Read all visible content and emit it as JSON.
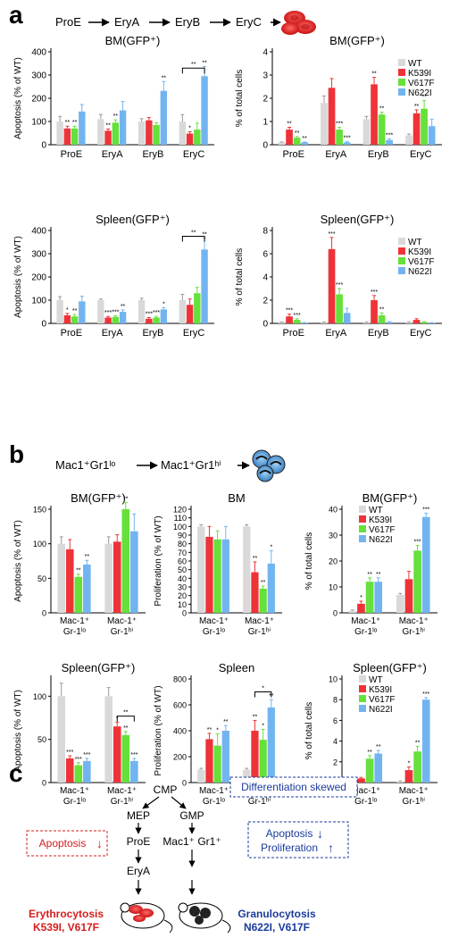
{
  "colors": {
    "WT": "#d9d9d9",
    "K539I": "#ee3338",
    "V617F": "#66e03a",
    "N622I": "#72b4f0",
    "red_text": "#d61d1d",
    "blue_text": "#1b3b9c",
    "cell_red": "#e01b1b"
  },
  "panel_a": {
    "letter": "a",
    "pathway": [
      "ProE",
      "EryA",
      "EryB",
      "EryC"
    ]
  },
  "panel_b": {
    "letter": "b",
    "pathway": [
      "Mac1⁺Gr1ˡᵒ",
      "Mac1⁺Gr1ʰⁱ"
    ]
  },
  "panel_c": {
    "letter": "c",
    "nodes": {
      "cmp": "CMP",
      "mep": "MEP",
      "gmp": "GMP",
      "proe": "ProE",
      "erya": "EryA",
      "mac": "Mac1⁺ Gr1⁺"
    },
    "boxes": {
      "differentiation": "Differentiation skewed",
      "apoptosis_left": "Apoptosis",
      "apoptosis_right": "Apoptosis",
      "proliferation": "Proliferation"
    },
    "arrows": {
      "down": "↓",
      "up": "↑"
    },
    "outcomes": {
      "left_title": "Erythrocytosis",
      "left_mut": "K539I, V617F",
      "right_title": "Granulocytosis",
      "right_mut": "N622I, V617F"
    }
  },
  "chart_data": [
    {
      "type": "bar",
      "id": "a1",
      "title": "BM(GFP⁺)",
      "ylabel": "Apoptosis (% of WT)",
      "ylim": [
        0,
        400
      ],
      "yticks": [
        0,
        100,
        200,
        300,
        400
      ],
      "categories": [
        "ProE",
        "EryA",
        "EryB",
        "EryC"
      ],
      "series": [
        {
          "name": "WT",
          "values": [
            100,
            110,
            100,
            100
          ]
        },
        {
          "name": "K539I",
          "values": [
            70,
            60,
            105,
            48
          ]
        },
        {
          "name": "V617F",
          "values": [
            70,
            95,
            85,
            65
          ]
        },
        {
          "name": "N622I",
          "values": [
            143,
            148,
            232,
            295
          ]
        }
      ],
      "errors": [
        [
          22,
          20,
          12,
          30
        ],
        [
          10,
          8,
          12,
          8
        ],
        [
          10,
          12,
          10,
          28
        ],
        [
          30,
          38,
          40,
          42
        ]
      ],
      "stars": [
        [
          [],
          [],
          [],
          []
        ],
        [
          [
            "**"
          ],
          [
            "**"
          ],
          [],
          [
            "*"
          ]
        ],
        [
          [
            "**"
          ],
          [
            "**"
          ],
          [],
          []
        ],
        [
          [],
          [],
          [
            "**"
          ],
          [
            "**"
          ]
        ]
      ],
      "brackets": [
        {
          "c": 3,
          "s1": 0,
          "s2": 3,
          "y": 330,
          "label": "**"
        }
      ]
    },
    {
      "type": "bar",
      "id": "a2",
      "title": "BM(GFP⁺)",
      "ylabel": "% of total cells",
      "ylim": [
        0,
        4
      ],
      "yticks": [
        0,
        1,
        2,
        3,
        4
      ],
      "categories": [
        "ProE",
        "EryA",
        "EryB",
        "EryC"
      ],
      "legend": [
        "WT",
        "K539I",
        "V617F",
        "N622I"
      ],
      "series": [
        {
          "name": "WT",
          "values": [
            0.1,
            1.8,
            1.1,
            0.4
          ]
        },
        {
          "name": "K539I",
          "values": [
            0.65,
            2.45,
            2.6,
            1.35
          ]
        },
        {
          "name": "V617F",
          "values": [
            0.3,
            0.65,
            1.3,
            1.55
          ]
        },
        {
          "name": "N622I",
          "values": [
            0.1,
            0.1,
            0.2,
            0.8
          ]
        }
      ],
      "errors": [
        [
          0.02,
          0.3,
          0.12,
          0.06
        ],
        [
          0.1,
          0.4,
          0.3,
          0.15
        ],
        [
          0.05,
          0.1,
          0.1,
          0.35
        ],
        [
          0.02,
          0.03,
          0.05,
          0.3
        ]
      ],
      "stars": [
        [
          [],
          [],
          [],
          []
        ],
        [
          [
            "**"
          ],
          [],
          [
            "**"
          ],
          [
            "**"
          ]
        ],
        [
          [
            "**"
          ],
          [
            "***"
          ],
          [
            "**"
          ],
          [
            "**"
          ]
        ],
        [
          [
            "**"
          ],
          [
            "***"
          ],
          [
            "***"
          ],
          []
        ]
      ]
    },
    {
      "type": "bar",
      "id": "a3",
      "title": "Spleen(GFP⁺)",
      "ylabel": "Apoptosis (% of WT)",
      "ylim": [
        0,
        400
      ],
      "yticks": [
        0,
        100,
        200,
        300,
        400
      ],
      "categories": [
        "ProE",
        "EryA",
        "EryB",
        "EryC"
      ],
      "series": [
        {
          "name": "WT",
          "values": [
            100,
            100,
            100,
            100
          ]
        },
        {
          "name": "K539I",
          "values": [
            35,
            25,
            20,
            80
          ]
        },
        {
          "name": "V617F",
          "values": [
            30,
            28,
            25,
            130
          ]
        },
        {
          "name": "N622I",
          "values": [
            95,
            50,
            60,
            318
          ]
        }
      ],
      "errors": [
        [
          15,
          5,
          8,
          25
        ],
        [
          8,
          5,
          5,
          25
        ],
        [
          8,
          5,
          5,
          25
        ],
        [
          22,
          8,
          8,
          50
        ]
      ],
      "stars": [
        [
          [],
          [],
          [],
          []
        ],
        [
          [
            "*"
          ],
          [
            "***"
          ],
          [
            "***"
          ],
          []
        ],
        [
          [
            "**"
          ],
          [
            "***"
          ],
          [
            "***"
          ],
          []
        ],
        [
          [],
          [
            "**"
          ],
          [
            "*"
          ],
          [
            "**"
          ]
        ]
      ],
      "brackets": [
        {
          "c": 3,
          "s1": 0,
          "s2": 3,
          "y": 375,
          "label": "**"
        }
      ]
    },
    {
      "type": "bar",
      "id": "a4",
      "title": "Spleen(GFP⁺)",
      "ylabel": "% of total cells",
      "ylim": [
        0,
        8
      ],
      "yticks": [
        0,
        2,
        4,
        6,
        8
      ],
      "categories": [
        "ProE",
        "EryA",
        "EryB",
        "EryC"
      ],
      "legend": [
        "WT",
        "K539I",
        "V617F",
        "N622I"
      ],
      "series": [
        {
          "name": "WT",
          "values": [
            0.1,
            0.1,
            0.1,
            0.1
          ]
        },
        {
          "name": "K539I",
          "values": [
            0.6,
            6.4,
            2.0,
            0.3
          ]
        },
        {
          "name": "V617F",
          "values": [
            0.3,
            2.5,
            0.7,
            0.1
          ]
        },
        {
          "name": "N622I",
          "values": [
            0.05,
            0.9,
            0.1,
            0.05
          ]
        }
      ],
      "errors": [
        [
          0.02,
          0.02,
          0.02,
          0.02
        ],
        [
          0.2,
          1.0,
          0.4,
          0.1
        ],
        [
          0.1,
          0.5,
          0.2,
          0.05
        ],
        [
          0.02,
          0.4,
          0.05,
          0.02
        ]
      ],
      "stars": [
        [
          [],
          [],
          [],
          []
        ],
        [
          [
            "***"
          ],
          [
            "***"
          ],
          [
            "***"
          ],
          []
        ],
        [
          [
            "***"
          ],
          [
            "***"
          ],
          [
            "**"
          ],
          []
        ],
        [
          [],
          [],
          [],
          []
        ]
      ]
    },
    {
      "type": "bar",
      "id": "b1",
      "title": "BM(GFP⁺)",
      "ylabel": "Apoptosis (% of WT)",
      "ylim": [
        0,
        150
      ],
      "yticks": [
        0,
        50,
        100,
        150
      ],
      "categories": [
        "Mac-1⁺ Gr-1ˡᵒ",
        "Mac-1⁺ Gr-1ʰⁱ"
      ],
      "series": [
        {
          "name": "WT",
          "values": [
            100,
            100
          ]
        },
        {
          "name": "K539I",
          "values": [
            92,
            103
          ]
        },
        {
          "name": "V617F",
          "values": [
            52,
            150
          ]
        },
        {
          "name": "N622I",
          "values": [
            70,
            118
          ]
        }
      ],
      "errors": [
        [
          10,
          10
        ],
        [
          14,
          10
        ],
        [
          4,
          10
        ],
        [
          6,
          25
        ]
      ],
      "stars": [
        [
          [],
          []
        ],
        [
          [],
          []
        ],
        [
          [
            "**"
          ],
          [
            "**"
          ]
        ],
        [
          [
            "**"
          ],
          []
        ]
      ]
    },
    {
      "type": "bar",
      "id": "b2",
      "title": "BM",
      "ylabel": "Proliferation (% of WT)",
      "ylim": [
        0,
        120
      ],
      "yticks": [
        0,
        10,
        20,
        30,
        40,
        50,
        60,
        70,
        80,
        90,
        100,
        110,
        120
      ],
      "categories": [
        "Mac-1⁺ Gr-1ˡᵒ",
        "Mac-1⁺ Gr-1ʰⁱ"
      ],
      "series": [
        {
          "name": "WT",
          "values": [
            100,
            100
          ]
        },
        {
          "name": "K539I",
          "values": [
            88,
            47
          ]
        },
        {
          "name": "V617F",
          "values": [
            85,
            28
          ]
        },
        {
          "name": "N622I",
          "values": [
            85,
            57
          ]
        }
      ],
      "errors": [
        [
          2,
          2
        ],
        [
          12,
          12
        ],
        [
          10,
          3
        ],
        [
          15,
          15
        ]
      ],
      "stars": [
        [
          [],
          []
        ],
        [
          [],
          [
            "**"
          ]
        ],
        [
          [],
          [
            "**"
          ]
        ],
        [
          [],
          [
            "*"
          ]
        ]
      ]
    },
    {
      "type": "bar",
      "id": "b3",
      "title": "BM(GFP⁺)",
      "ylabel": "% of total cells",
      "ylim": [
        0,
        40
      ],
      "yticks": [
        0,
        10,
        20,
        30,
        40
      ],
      "categories": [
        "Mac-1⁺ Gr-1ˡᵒ",
        "Mac-1⁺ Gr-1ʰⁱ"
      ],
      "legend": [
        "WT",
        "K539I",
        "V617F",
        "N622I"
      ],
      "series": [
        {
          "name": "WT",
          "values": [
            0.8,
            7
          ]
        },
        {
          "name": "K539I",
          "values": [
            3.5,
            13
          ]
        },
        {
          "name": "V617F",
          "values": [
            12,
            24
          ]
        },
        {
          "name": "N622I",
          "values": [
            12,
            37
          ]
        }
      ],
      "errors": [
        [
          0.3,
          0.5
        ],
        [
          1,
          3
        ],
        [
          1.5,
          2
        ],
        [
          1.5,
          1.5
        ]
      ],
      "stars": [
        [
          [],
          []
        ],
        [
          [
            "*"
          ],
          []
        ],
        [
          [
            "**"
          ],
          [
            "***"
          ]
        ],
        [
          [
            "**"
          ],
          [
            "***"
          ]
        ]
      ]
    },
    {
      "type": "bar",
      "id": "b4",
      "title": "Spleen(GFP⁺)",
      "ylabel": "Apoptosis (% of WT)",
      "ylim": [
        0,
        120
      ],
      "yticks": [
        0,
        50,
        100
      ],
      "categories": [
        "Mac-1⁺ Gr-1ˡᵒ",
        "Mac-1⁺ Gr-1ʰⁱ"
      ],
      "series": [
        {
          "name": "WT",
          "values": [
            100,
            100
          ]
        },
        {
          "name": "K539I",
          "values": [
            28,
            65
          ]
        },
        {
          "name": "V617F",
          "values": [
            20,
            55
          ]
        },
        {
          "name": "N622I",
          "values": [
            25,
            25
          ]
        }
      ],
      "errors": [
        [
          15,
          10
        ],
        [
          3,
          5
        ],
        [
          3,
          4
        ],
        [
          3,
          3
        ]
      ],
      "stars": [
        [
          [],
          []
        ],
        [
          [
            "***"
          ],
          [
            "*"
          ]
        ],
        [
          [
            "***"
          ],
          [
            "**"
          ]
        ],
        [
          [
            "***"
          ],
          [
            "***"
          ]
        ]
      ],
      "brackets": [
        {
          "c": 1,
          "s1": 1,
          "s2": 3,
          "y": 77,
          "label": "**"
        }
      ]
    },
    {
      "type": "bar",
      "id": "b5",
      "title": "Spleen",
      "ylabel": "Proliferation (% of WT)",
      "ylim": [
        0,
        800
      ],
      "yticks": [
        0,
        200,
        400,
        600,
        800
      ],
      "categories": [
        "Mac-1⁺ Gr-1ˡᵒ",
        "Mac-1⁺ Gr-1ʰⁱ"
      ],
      "series": [
        {
          "name": "WT",
          "values": [
            100,
            100
          ]
        },
        {
          "name": "K539I",
          "values": [
            335,
            400
          ]
        },
        {
          "name": "V617F",
          "values": [
            285,
            330
          ]
        },
        {
          "name": "N622I",
          "values": [
            400,
            580
          ]
        }
      ],
      "errors": [
        [
          10,
          10
        ],
        [
          45,
          80
        ],
        [
          90,
          80
        ],
        [
          40,
          60
        ]
      ],
      "stars": [
        [
          [],
          []
        ],
        [
          [
            "**"
          ],
          [
            "**"
          ]
        ],
        [
          [
            "*"
          ],
          [
            "*"
          ]
        ],
        [
          [
            "**"
          ],
          [
            "**"
          ]
        ]
      ],
      "brackets": [
        {
          "c": 1,
          "s1": 1,
          "s2": 3,
          "y": 700,
          "label": "*"
        }
      ]
    },
    {
      "type": "bar",
      "id": "b6",
      "title": "Spleen(GFP⁺)",
      "ylabel": "% of total cells",
      "ylim": [
        0,
        10
      ],
      "yticks": [
        0,
        2,
        4,
        6,
        8,
        10
      ],
      "categories": [
        "Mac-1⁺ Gr-1ˡᵒ",
        "Mac-1⁺ Gr-1ʰⁱ"
      ],
      "legend": [
        "WT",
        "K539I",
        "V617F",
        "N622I"
      ],
      "series": [
        {
          "name": "WT",
          "values": [
            0.1,
            0.1
          ]
        },
        {
          "name": "K539I",
          "values": [
            0.4,
            1.2
          ]
        },
        {
          "name": "V617F",
          "values": [
            2.3,
            3.0
          ]
        },
        {
          "name": "N622I",
          "values": [
            2.8,
            8
          ]
        }
      ],
      "errors": [
        [
          0.05,
          0.05
        ],
        [
          0.1,
          0.3
        ],
        [
          0.3,
          0.5
        ],
        [
          0.3,
          0.2
        ]
      ],
      "stars": [
        [
          [],
          []
        ],
        [
          [],
          [
            "*"
          ]
        ],
        [
          [
            "**"
          ],
          [
            "**"
          ]
        ],
        [
          [
            "**"
          ],
          [
            "***"
          ]
        ]
      ]
    }
  ]
}
